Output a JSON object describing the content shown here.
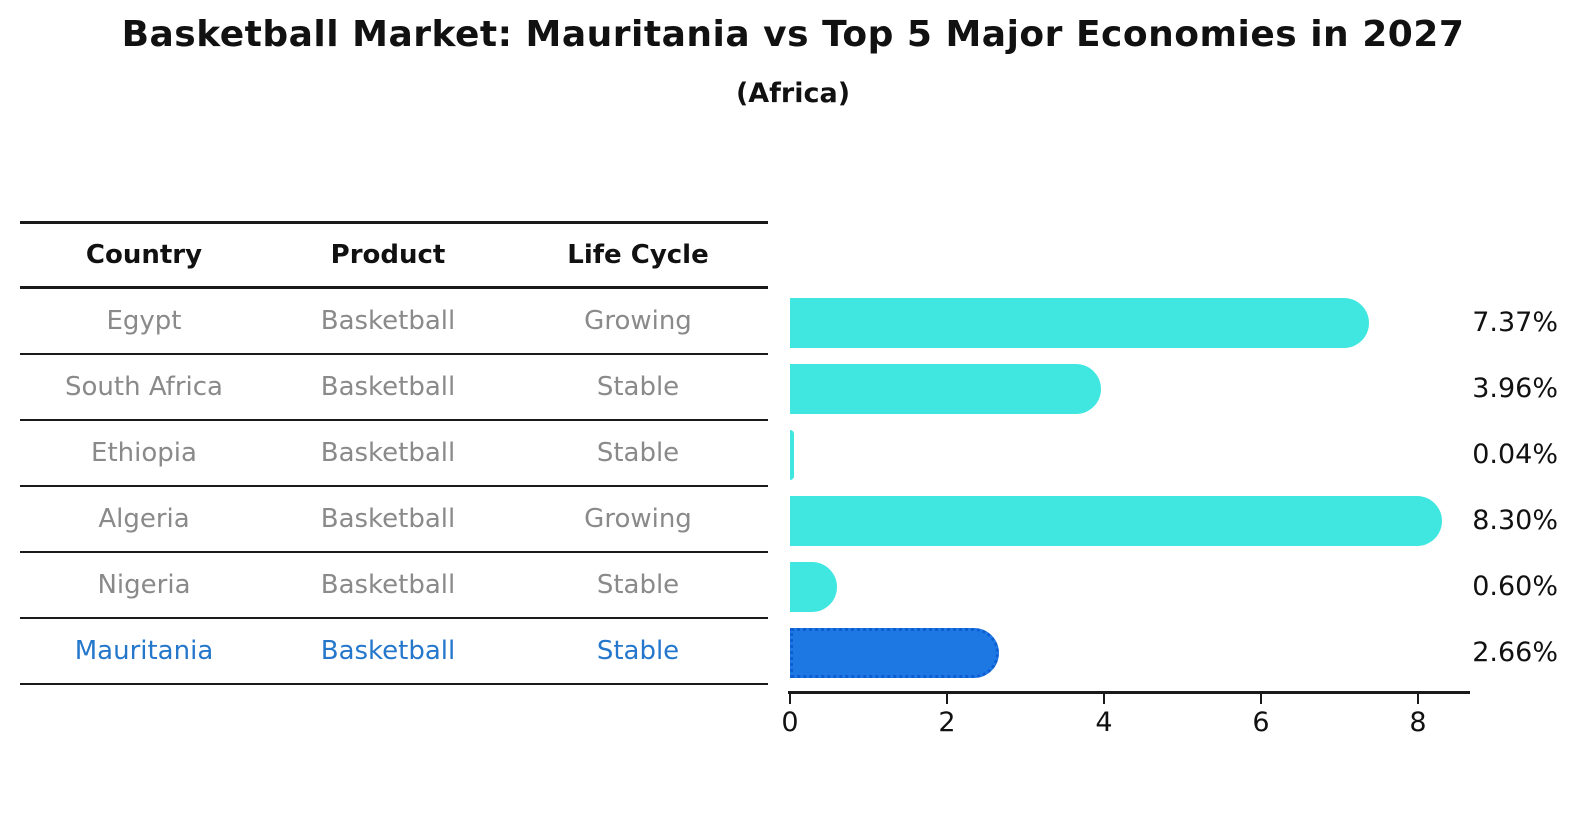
{
  "title": "Basketball Market: Mauritania vs Top 5 Major Economies in 2027",
  "subtitle": "(Africa)",
  "colors": {
    "bar_default": "#40e6e0",
    "bar_highlight": "#1e78e4",
    "highlight_border": "#0d5ed2",
    "table_text": "#8a8a8a",
    "highlight_text": "#2577cc",
    "line": "#1a1a1a"
  },
  "table": {
    "headers": [
      "Country",
      "Product",
      "Life Cycle"
    ],
    "rows": [
      {
        "country": "Egypt",
        "product": "Basketball",
        "life_cycle": "Growing",
        "highlight": false
      },
      {
        "country": "South Africa",
        "product": "Basketball",
        "life_cycle": "Stable",
        "highlight": false
      },
      {
        "country": "Ethiopia",
        "product": "Basketball",
        "life_cycle": "Stable",
        "highlight": false
      },
      {
        "country": "Algeria",
        "product": "Basketball",
        "life_cycle": "Growing",
        "highlight": false
      },
      {
        "country": "Nigeria",
        "product": "Basketball",
        "life_cycle": "Stable",
        "highlight": false
      },
      {
        "country": "Mauritania",
        "product": "Basketball",
        "life_cycle": "Stable",
        "highlight": true
      }
    ]
  },
  "chart_data": {
    "type": "bar",
    "orientation": "horizontal",
    "categories": [
      "Egypt",
      "South Africa",
      "Ethiopia",
      "Algeria",
      "Nigeria",
      "Mauritania"
    ],
    "values": [
      7.37,
      3.96,
      0.04,
      8.3,
      0.6,
      2.66
    ],
    "value_labels": [
      "7.37%",
      "3.96%",
      "0.04%",
      "8.30%",
      "0.60%",
      "2.66%"
    ],
    "title": "Basketball Market: Mauritania vs Top 5 Major Economies in 2027",
    "subtitle": "(Africa)",
    "xlabel": "",
    "ylabel": "",
    "xticks": [
      0,
      2,
      4,
      6,
      8
    ],
    "xlim": [
      0,
      8.7
    ],
    "grid": false,
    "legend": false,
    "highlight_index": 5,
    "highlight_category": "Mauritania"
  }
}
